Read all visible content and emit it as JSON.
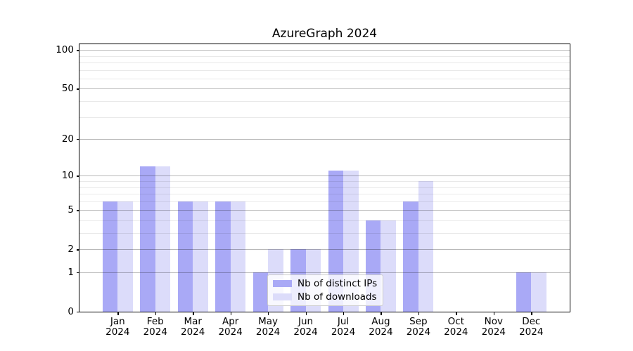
{
  "chart_data": {
    "type": "bar",
    "title": "AzureGraph 2024",
    "categories": [
      "Jan 2024",
      "Feb 2024",
      "Mar 2024",
      "Apr 2024",
      "May 2024",
      "Jun 2024",
      "Jul 2024",
      "Aug 2024",
      "Sep 2024",
      "Oct 2024",
      "Nov 2024",
      "Dec 2024"
    ],
    "series": [
      {
        "name": "Nb of distinct IPs",
        "color": "#a9a9f6",
        "values": [
          6,
          12,
          6,
          6,
          1,
          2,
          11,
          4,
          6,
          0,
          0,
          1
        ]
      },
      {
        "name": "Nb of downloads",
        "color": "#dcdcfa",
        "values": [
          6,
          12,
          6,
          6,
          2,
          2,
          11,
          4,
          9,
          0,
          0,
          1
        ]
      }
    ],
    "xlabel": "",
    "ylabel": "",
    "yscale": "log1p",
    "ylim": [
      0,
      111
    ],
    "y_ticks_major": [
      0,
      1,
      2,
      5,
      10,
      20,
      50,
      100
    ],
    "y_ticks_minor": [
      3,
      4,
      6,
      7,
      8,
      9,
      30,
      40,
      60,
      70,
      80,
      90
    ],
    "grid": "horizontal only; major ticks darker; gridlines drawn above bars",
    "legend_position": "lower center"
  },
  "colors": {
    "background": "#ffffff",
    "spine": "#000000",
    "text": "#000000",
    "grid_major": "rgba(0,0,0,0.28)",
    "grid_minor": "rgba(0,0,0,0.085)",
    "legend_border": "#cccccc",
    "legend_background": "rgba(255,255,255,0.8)",
    "bar_distinct_ips": "#a9a9f6",
    "bar_downloads": "#dcdcfa"
  }
}
